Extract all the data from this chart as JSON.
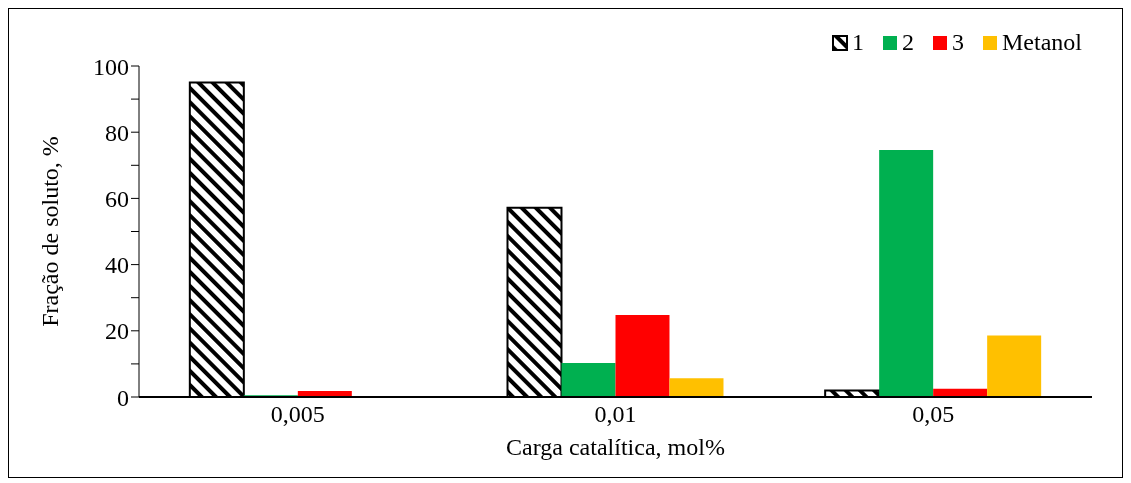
{
  "chart_data": {
    "type": "bar",
    "xlabel": "Carga catalítica, mol%",
    "ylabel": "Fração de soluto, %",
    "categories": [
      "0,005",
      "0,01",
      "0,05"
    ],
    "series": [
      {
        "name": "1",
        "color": "#000000",
        "values": [
          95,
          57.2,
          2
        ]
      },
      {
        "name": "2",
        "color": "#00b050",
        "values": [
          0.5,
          10.3,
          74.6
        ]
      },
      {
        "name": "3",
        "color": "#ff0000",
        "values": [
          1.8,
          24.8,
          2.5
        ]
      },
      {
        "name": "Metanol",
        "color": "#ffc000",
        "values": [
          0,
          5.7,
          18.6
        ]
      }
    ],
    "ylim": [
      0,
      100
    ],
    "yticks": [
      0,
      {
        "value": 10,
        "label": null
      },
      20,
      {
        "value": 30,
        "label": null
      },
      40,
      {
        "value": 50,
        "label": null
      },
      60,
      {
        "value": 70,
        "label": null
      },
      80,
      {
        "value": 90,
        "label": null
      },
      100
    ],
    "legend": "top right"
  }
}
